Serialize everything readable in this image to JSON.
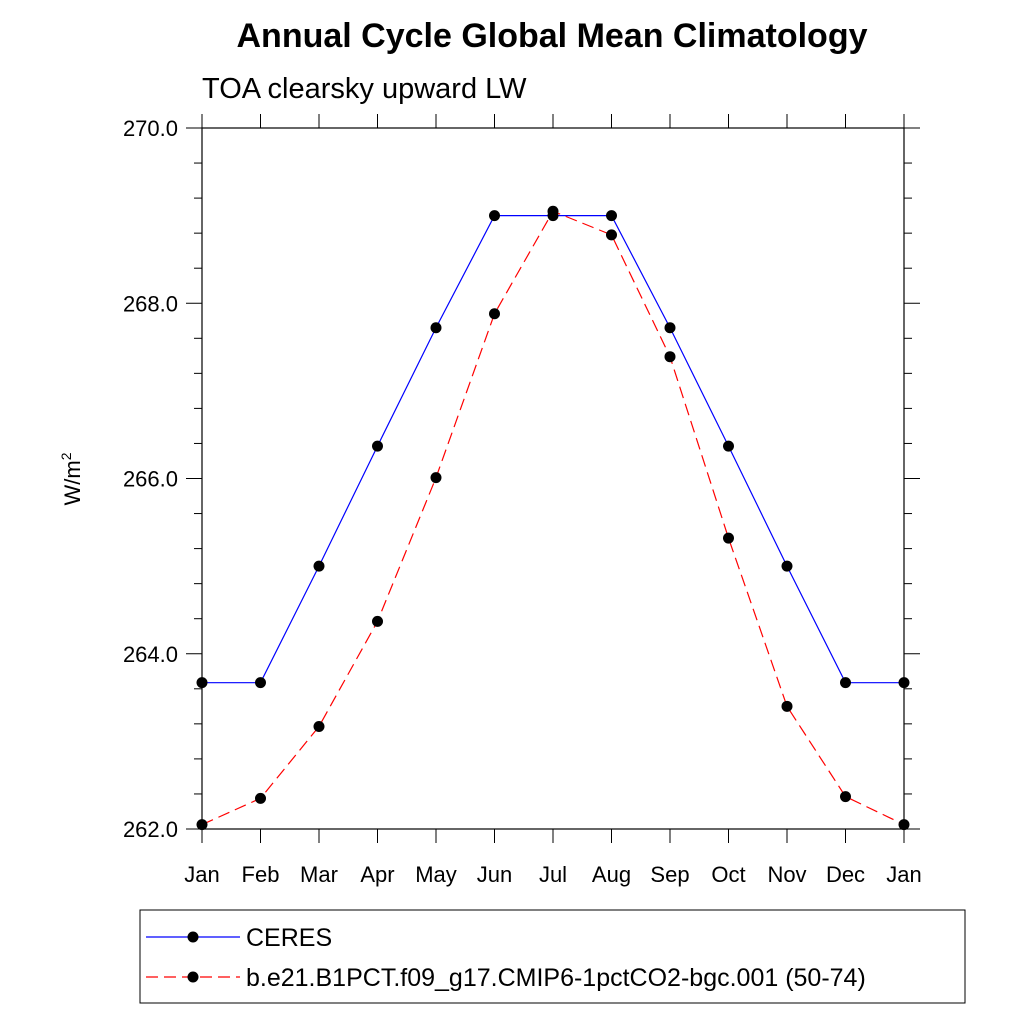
{
  "chart_data": {
    "type": "line",
    "title": "Annual Cycle Global Mean Climatology",
    "subtitle": "TOA clearsky upward LW",
    "xlabel": "",
    "ylabel": "W/m",
    "ylabel_superscript": "2",
    "ylim": [
      262.0,
      270.0
    ],
    "y_major_ticks": [
      262.0,
      264.0,
      266.0,
      268.0,
      270.0
    ],
    "y_tick_labels": [
      "262.0",
      "264.0",
      "266.0",
      "268.0",
      "270.0"
    ],
    "y_minor_step": 0.4,
    "categories": [
      "Jan",
      "Feb",
      "Mar",
      "Apr",
      "May",
      "Jun",
      "Jul",
      "Aug",
      "Sep",
      "Oct",
      "Nov",
      "Dec",
      "Jan"
    ],
    "legend_position": "bottom",
    "series": [
      {
        "name": "CERES",
        "color": "#0000ff",
        "dash": "solid",
        "marker": "filled-circle",
        "values": [
          263.67,
          263.67,
          265.0,
          266.37,
          267.72,
          269.0,
          269.0,
          269.0,
          267.72,
          266.37,
          265.0,
          263.67,
          263.67
        ]
      },
      {
        "name": "b.e21.B1PCT.f09_g17.CMIP6-1pctCO2-bgc.001 (50-74)",
        "color": "#ff0000",
        "dash": "dashed",
        "marker": "filled-circle",
        "values": [
          262.05,
          262.35,
          263.17,
          264.37,
          266.01,
          267.88,
          269.05,
          268.78,
          267.39,
          265.32,
          263.4,
          262.37,
          262.05
        ]
      }
    ]
  }
}
